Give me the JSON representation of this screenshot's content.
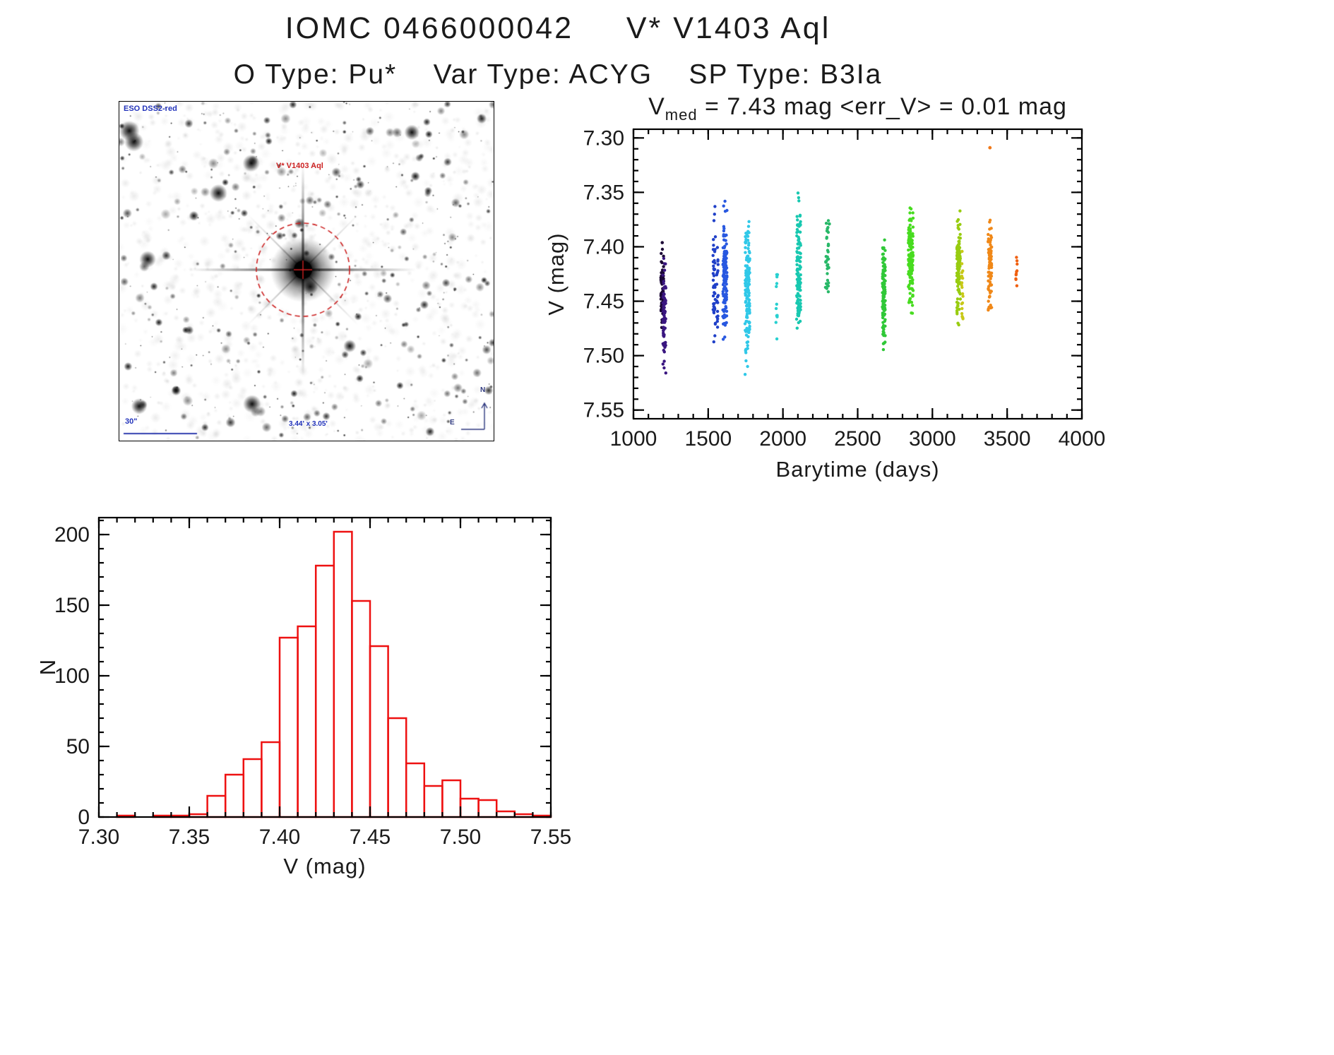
{
  "page": {
    "title": "IOMC 0466000042     V* V1403 Aql",
    "subtitle": "O Type: Pu*    Var Type: ACYG    SP Type: B3Ia"
  },
  "finder": {
    "survey_label": "ESO DSS2-red",
    "star_label": "V* V1403 Aql",
    "scale_label": "30\"",
    "fov_label": "3.44' x 3.05'",
    "north_label": "N",
    "east_label": "E"
  },
  "chart_data": [
    {
      "type": "scatter",
      "title": "Vmed  =  7.43 mag <err_V>  =  0.01 mag",
      "title_parts": {
        "main": "V",
        "sub": "med",
        "rest": "  =  7.43 mag <err_V>  =  0.01 mag"
      },
      "xlabel": "Barytime (days)",
      "ylabel": "V (mag)",
      "xlim": [
        1000,
        4000
      ],
      "ylim_top": 7.3,
      "ylim_bottom": 7.55,
      "y_axis_inverted": true,
      "xticks": [
        1000,
        1500,
        2000,
        2500,
        3000,
        3500,
        4000
      ],
      "yticks": [
        7.3,
        7.35,
        7.4,
        7.45,
        7.5,
        7.55
      ],
      "x_minor": 100,
      "y_minor": 0.01,
      "legend": "none",
      "grid": false,
      "clusters": [
        {
          "x": 1193,
          "x_spread": 10,
          "n": 60,
          "y_mean": 7.435,
          "y_sd": 0.02,
          "y_min": 7.395,
          "y_max": 7.49,
          "color": "#1c0836"
        },
        {
          "x": 1207,
          "x_spread": 10,
          "n": 70,
          "y_mean": 7.465,
          "y_sd": 0.025,
          "y_min": 7.4,
          "y_max": 7.545,
          "color": "#3a1680"
        },
        {
          "x": 1540,
          "x_spread": 8,
          "n": 45,
          "y_mean": 7.43,
          "y_sd": 0.03,
          "y_min": 7.36,
          "y_max": 7.5,
          "color": "#2040c8"
        },
        {
          "x": 1562,
          "x_spread": 6,
          "n": 20,
          "y_mean": 7.44,
          "y_sd": 0.025,
          "y_min": 7.38,
          "y_max": 7.51,
          "color": "#2040c8"
        },
        {
          "x": 1612,
          "x_spread": 14,
          "n": 130,
          "y_mean": 7.43,
          "y_sd": 0.028,
          "y_min": 7.35,
          "y_max": 7.485,
          "color": "#2858e0"
        },
        {
          "x": 1762,
          "x_spread": 16,
          "n": 150,
          "y_mean": 7.44,
          "y_sd": 0.03,
          "y_min": 7.335,
          "y_max": 7.535,
          "color": "#30c8e8"
        },
        {
          "x": 1955,
          "x_spread": 10,
          "n": 12,
          "y_mean": 7.45,
          "y_sd": 0.028,
          "y_min": 7.405,
          "y_max": 7.49,
          "color": "#28d0d0"
        },
        {
          "x": 2105,
          "x_spread": 14,
          "n": 120,
          "y_mean": 7.42,
          "y_sd": 0.028,
          "y_min": 7.345,
          "y_max": 7.475,
          "color": "#18c8b0"
        },
        {
          "x": 2295,
          "x_spread": 12,
          "n": 35,
          "y_mean": 7.41,
          "y_sd": 0.02,
          "y_min": 7.375,
          "y_max": 7.46,
          "color": "#28b868"
        },
        {
          "x": 2675,
          "x_spread": 10,
          "n": 100,
          "y_mean": 7.44,
          "y_sd": 0.025,
          "y_min": 7.39,
          "y_max": 7.512,
          "color": "#30c838"
        },
        {
          "x": 2855,
          "x_spread": 16,
          "n": 140,
          "y_mean": 7.41,
          "y_sd": 0.022,
          "y_min": 7.355,
          "y_max": 7.465,
          "color": "#48dc20"
        },
        {
          "x": 3175,
          "x_spread": 12,
          "n": 110,
          "y_mean": 7.42,
          "y_sd": 0.022,
          "y_min": 7.365,
          "y_max": 7.475,
          "color": "#98cc10"
        },
        {
          "x": 3200,
          "x_spread": 5,
          "n": 20,
          "y_mean": 7.44,
          "y_sd": 0.02,
          "y_min": 7.4,
          "y_max": 7.475,
          "color": "#c8c818"
        },
        {
          "x": 3385,
          "x_spread": 12,
          "n": 85,
          "y_mean": 7.42,
          "y_sd": 0.022,
          "y_min": 7.37,
          "y_max": 7.472,
          "color": "#f08818"
        },
        {
          "x": 3565,
          "x_spread": 8,
          "n": 10,
          "y_mean": 7.42,
          "y_sd": 0.012,
          "y_min": 7.4,
          "y_max": 7.44,
          "color": "#f06010"
        }
      ],
      "outliers": [
        {
          "x": 3385,
          "y": 7.309,
          "color": "#f07818"
        },
        {
          "x": 2310,
          "y": 7.379,
          "color": "#28b868"
        }
      ]
    },
    {
      "type": "bar",
      "subtype": "histogram",
      "title": "",
      "xlabel": "V (mag)",
      "ylabel": "N",
      "bar_color": "#ee1111",
      "bin_start": 7.3,
      "bin_width": 0.01,
      "counts": [
        0,
        1,
        0,
        1,
        1,
        2,
        15,
        30,
        41,
        53,
        127,
        135,
        178,
        202,
        153,
        121,
        70,
        38,
        22,
        26,
        13,
        12,
        4,
        2,
        1
      ],
      "xlim": [
        7.3,
        7.55
      ],
      "ylim": [
        0,
        212
      ],
      "xticks": [
        7.3,
        7.35,
        7.4,
        7.45,
        7.5,
        7.55
      ],
      "yticks": [
        0,
        50,
        100,
        150,
        200
      ],
      "x_minor": 0.01,
      "y_minor": 10,
      "legend": "none",
      "grid": false
    }
  ]
}
